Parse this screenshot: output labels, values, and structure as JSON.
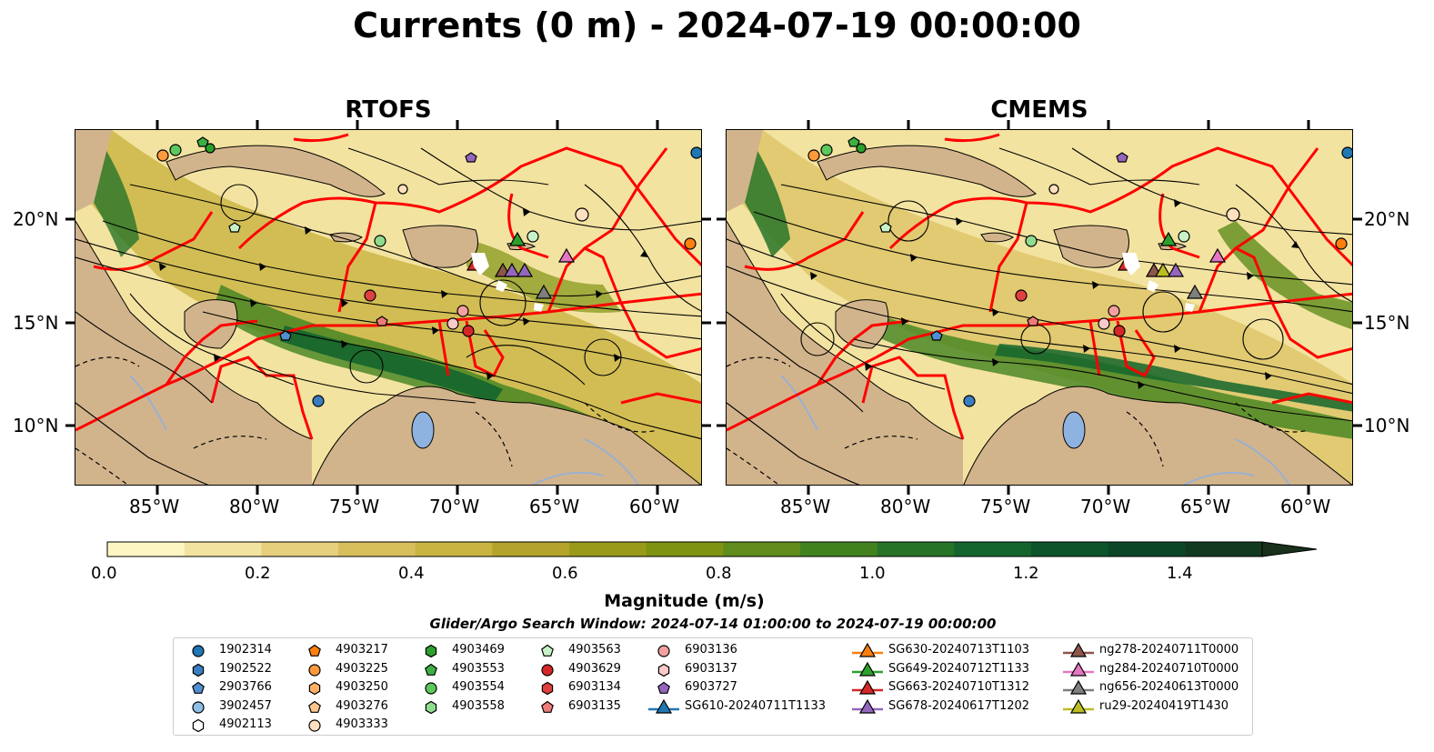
{
  "title": "Currents (0 m) - 2024-07-19 00:00:00",
  "panels": [
    {
      "title": "RTOFS"
    },
    {
      "title": "CMEMS"
    }
  ],
  "lat_labels": [
    "20°N",
    "15°N",
    "10°N"
  ],
  "lon_labels": [
    "85°W",
    "80°W",
    "75°W",
    "70°W",
    "65°W",
    "60°W"
  ],
  "colorbar": {
    "ticks": [
      "0.0",
      "0.2",
      "0.4",
      "0.6",
      "0.8",
      "1.0",
      "1.2",
      "1.4"
    ],
    "label": "Magnitude (m/s)",
    "colors": [
      "#fdf6c3",
      "#f3e3a0",
      "#e6d07d",
      "#d9bf5c",
      "#c9b341",
      "#b4a42b",
      "#9a9a1a",
      "#7f9312",
      "#5f8c1b",
      "#41821f",
      "#277428",
      "#14652d",
      "#0c552b",
      "#0b4627",
      "#123a21",
      "#18301c"
    ]
  },
  "search_window": "Glider/Argo Search Window: 2024-07-14 01:00:00 to 2024-07-19 00:00:00",
  "legend": [
    {
      "label": "1902314",
      "marker": "circle",
      "color": "#1f77b4"
    },
    {
      "label": "1902522",
      "marker": "hexagon",
      "color": "#3a7dc0"
    },
    {
      "label": "2903766",
      "marker": "pentagon",
      "color": "#4f8fd0"
    },
    {
      "label": "3902457",
      "marker": "circle",
      "color": "#8fbfe8"
    },
    {
      "label": "4902113",
      "marker": "hexagon",
      "color": "#ffffff"
    },
    {
      "label": "4903217",
      "marker": "pentagon",
      "color": "#ff7f0e"
    },
    {
      "label": "4903225",
      "marker": "circle",
      "color": "#ff9a3c"
    },
    {
      "label": "4903250",
      "marker": "hexagon",
      "color": "#ffb066"
    },
    {
      "label": "4903276",
      "marker": "pentagon",
      "color": "#ffc58f"
    },
    {
      "label": "4903333",
      "marker": "circle",
      "color": "#ffe0c0"
    },
    {
      "label": "4903469",
      "marker": "hexagon",
      "color": "#2ca02c"
    },
    {
      "label": "4903553",
      "marker": "pentagon",
      "color": "#3cb043"
    },
    {
      "label": "4903554",
      "marker": "circle",
      "color": "#5cc95c"
    },
    {
      "label": "4903558",
      "marker": "hexagon",
      "color": "#8fdc8f"
    },
    {
      "label": "4903563",
      "marker": "pentagon",
      "color": "#c9f2c9"
    },
    {
      "label": "4903629",
      "marker": "circle",
      "color": "#d62728"
    },
    {
      "label": "6903134",
      "marker": "hexagon",
      "color": "#e04040"
    },
    {
      "label": "6903135",
      "marker": "pentagon",
      "color": "#ee7a7a"
    },
    {
      "label": "6903136",
      "marker": "circle",
      "color": "#f4a0a0"
    },
    {
      "label": "6903137",
      "marker": "hexagon",
      "color": "#fbc9c9"
    },
    {
      "label": "6903727",
      "marker": "pentagon",
      "color": "#9467bd"
    },
    {
      "label": "SG610-20240711T1133",
      "marker": "triangle-line",
      "color": "#1f77b4"
    },
    {
      "label": "SG630-20240713T1103",
      "marker": "triangle-line",
      "color": "#ff7f0e"
    },
    {
      "label": "SG649-20240712T1133",
      "marker": "triangle-line",
      "color": "#2ca02c"
    },
    {
      "label": "SG663-20240710T1312",
      "marker": "triangle-line",
      "color": "#d62728"
    },
    {
      "label": "SG678-20240617T1202",
      "marker": "triangle-line",
      "color": "#9467bd"
    },
    {
      "label": "ng278-20240711T0000",
      "marker": "triangle-line",
      "color": "#8c564b"
    },
    {
      "label": "ng284-20240710T0000",
      "marker": "triangle-line",
      "color": "#e377c2"
    },
    {
      "label": "ng656-20240613T0000",
      "marker": "triangle-line",
      "color": "#7f7f7f"
    },
    {
      "label": "ru29-20240419T1430",
      "marker": "triangle-line",
      "color": "#bcbd22"
    }
  ]
}
